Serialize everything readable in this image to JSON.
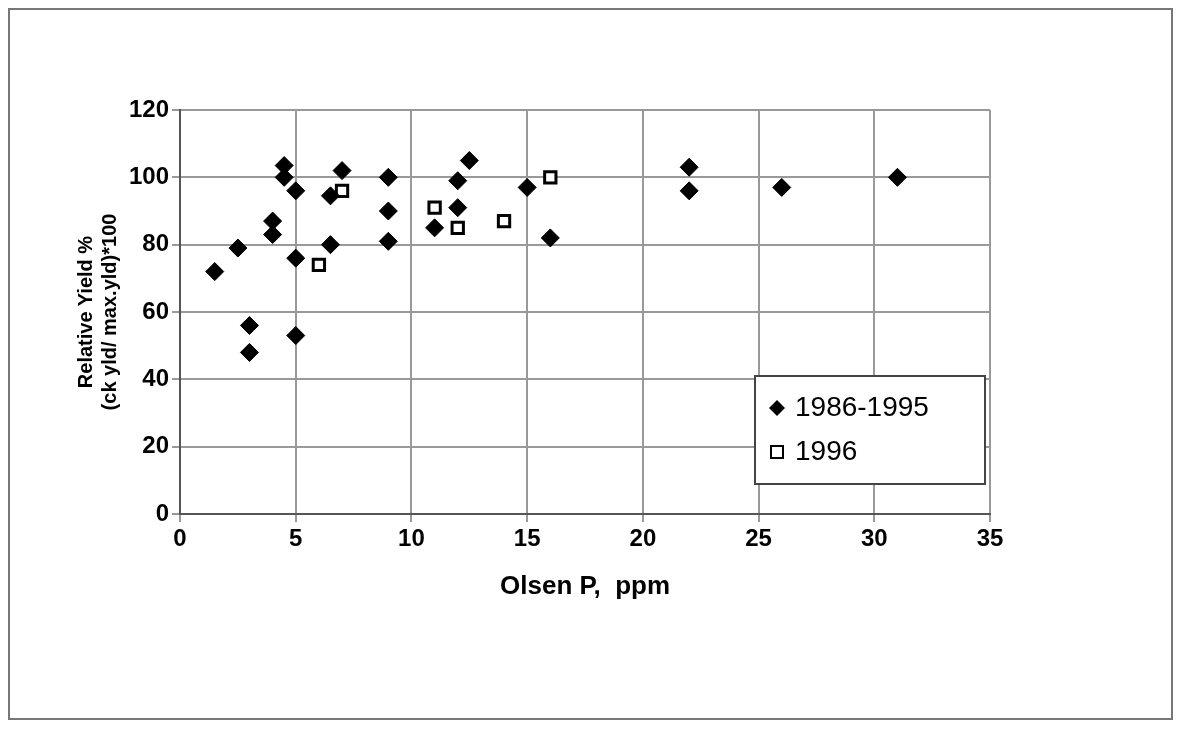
{
  "chart_data": {
    "type": "scatter",
    "xlabel": "Olsen P,  ppm",
    "ylabel": "Relative Yield % (ck yld/ max.yld)*100",
    "xlim": [
      0,
      35
    ],
    "xticks": [
      0,
      5,
      10,
      15,
      20,
      25,
      30,
      35
    ],
    "ylim": [
      0,
      120
    ],
    "yticks": [
      0,
      20,
      40,
      60,
      80,
      100,
      120
    ],
    "grid": true,
    "legend": "bottom right",
    "series": [
      {
        "name": "1986-1995",
        "color": "#000000",
        "marker": "diamond",
        "x": [
          1.5,
          2.5,
          4,
          4,
          4.5,
          4.5,
          5,
          5,
          3,
          3,
          5,
          6.5,
          6.5,
          7,
          9,
          9,
          9,
          11,
          12.5,
          12,
          12,
          15,
          16,
          22,
          22,
          26,
          31
        ],
        "values": [
          72,
          79,
          87,
          83,
          103.5,
          100,
          96,
          76,
          56,
          48,
          53,
          94.5,
          80,
          102,
          100,
          90,
          81,
          85,
          105,
          99,
          91,
          97,
          82,
          103,
          96,
          97,
          100
        ]
      },
      {
        "name": "1996",
        "color": "#000000",
        "marker": "square",
        "x": [
          7,
          6,
          11,
          12,
          14,
          16
        ],
        "values": [
          96,
          74,
          91,
          85,
          87,
          100
        ]
      }
    ]
  }
}
